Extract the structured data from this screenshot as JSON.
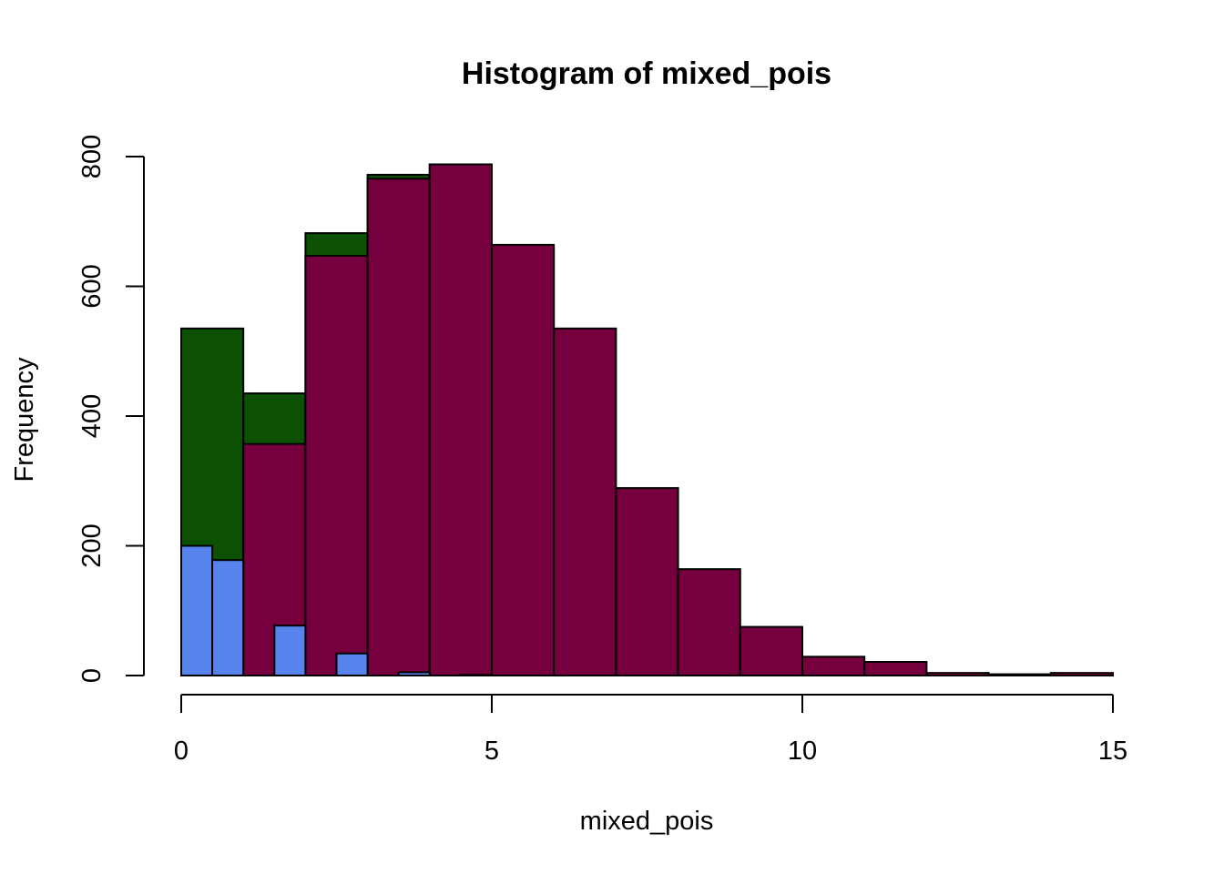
{
  "chart_data": {
    "type": "bar",
    "subtype": "overlaid-histogram",
    "title": "Histogram of mixed_pois",
    "xlabel": "mixed_pois",
    "ylabel": "Frequency",
    "xlim": [
      0,
      15
    ],
    "ylim": [
      0,
      800
    ],
    "x_ticks": [
      0,
      5,
      10,
      15
    ],
    "y_ticks": [
      0,
      200,
      400,
      600,
      800
    ],
    "grid": false,
    "legend": "none",
    "series": [
      {
        "color": "#0b5003",
        "bins": [
          {
            "x0": 0,
            "x1": 1,
            "count": 535
          },
          {
            "x0": 1,
            "x1": 2,
            "count": 435
          },
          {
            "x0": 2,
            "x1": 3,
            "count": 682
          },
          {
            "x0": 3,
            "x1": 4,
            "count": 772
          },
          {
            "x0": 4,
            "x1": 5,
            "count": 788
          }
        ]
      },
      {
        "color": "#75003d",
        "bins": [
          {
            "x0": 0,
            "x1": 1,
            "count": 0
          },
          {
            "x0": 1,
            "x1": 2,
            "count": 357
          },
          {
            "x0": 2,
            "x1": 3,
            "count": 647
          },
          {
            "x0": 3,
            "x1": 4,
            "count": 766
          },
          {
            "x0": 4,
            "x1": 5,
            "count": 788
          },
          {
            "x0": 5,
            "x1": 6,
            "count": 664
          },
          {
            "x0": 6,
            "x1": 7,
            "count": 535
          },
          {
            "x0": 7,
            "x1": 8,
            "count": 289
          },
          {
            "x0": 8,
            "x1": 9,
            "count": 164
          },
          {
            "x0": 9,
            "x1": 10,
            "count": 75
          },
          {
            "x0": 10,
            "x1": 11,
            "count": 29
          },
          {
            "x0": 11,
            "x1": 12,
            "count": 21
          },
          {
            "x0": 12,
            "x1": 13,
            "count": 4
          },
          {
            "x0": 13,
            "x1": 14,
            "count": 2
          },
          {
            "x0": 14,
            "x1": 15,
            "count": 4
          }
        ]
      },
      {
        "color": "#5783ec",
        "bins": [
          {
            "x0": 0,
            "x1": 0.5,
            "count": 200
          },
          {
            "x0": 0.5,
            "x1": 1,
            "count": 178
          },
          {
            "x0": 1.5,
            "x1": 2,
            "count": 77
          },
          {
            "x0": 2.5,
            "x1": 3,
            "count": 34
          },
          {
            "x0": 3.5,
            "x1": 4,
            "count": 5
          },
          {
            "x0": 4.5,
            "x1": 5,
            "count": 1
          }
        ]
      }
    ]
  }
}
